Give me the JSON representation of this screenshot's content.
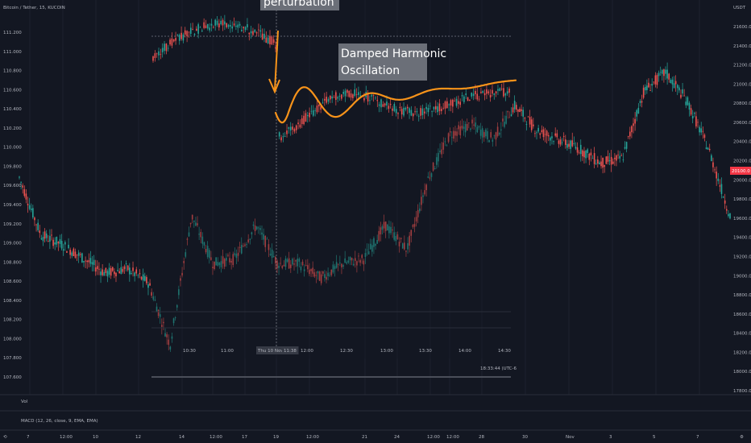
{
  "header": {
    "symbol_line": "Bitcoin / Tether, 15, KUCOIN",
    "currency": "USDT"
  },
  "indicators": {
    "volume": "Vol",
    "macd": "MACD (12, 26, close, 9, EMA, EMA)"
  },
  "colors": {
    "background": "#131722",
    "up": "#26a69a",
    "down": "#ef5350",
    "fit_curve": "#f7931a",
    "annotation_box": "#6b6f78",
    "price_tag": "#f23645"
  },
  "chart_data": [
    {
      "type": "line",
      "name": "main-price-axis",
      "x": [
        "7",
        "12:00",
        "10",
        "12",
        "14",
        "12:00",
        "17",
        "19",
        "12:00",
        "21",
        "12:00",
        "24",
        "12:00",
        "28",
        "30",
        "Nov",
        "3",
        "5",
        "7"
      ],
      "y_axis_ticks": [
        "111.200",
        "111.000",
        "110.800",
        "110.600",
        "110.400",
        "110.200",
        "110.000",
        "109.800",
        "109.600",
        "109.400",
        "109.200",
        "109.000",
        "108.800",
        "108.600",
        "108.400",
        "108.200",
        "108.000",
        "107.800",
        "107.600"
      ],
      "y_right_ticks": [
        "21600.0",
        "21400.0",
        "21200.0",
        "21000.0",
        "20800.0",
        "20600.0",
        "20400.0",
        "20200.0",
        "20000.0",
        "19800.0",
        "19600.0",
        "19400.0",
        "19200.0",
        "19000.0",
        "18800.0",
        "18600.0",
        "18400.0",
        "18200.0",
        "18000.0",
        "17800.0"
      ],
      "ylim_left": [
        107.5,
        111.3
      ],
      "ylim_right": [
        17800,
        21700
      ],
      "last_price": "20100.0",
      "ohlc_approx": [
        {
          "t": "7",
          "y": 109.7
        },
        {
          "t": "8",
          "y": 109.1
        },
        {
          "t": "9",
          "y": 109.0
        },
        {
          "t": "10",
          "y": 108.85
        },
        {
          "t": "11",
          "y": 108.7
        },
        {
          "t": "12",
          "y": 108.75
        },
        {
          "t": "13",
          "y": 108.6
        },
        {
          "t": "13.5",
          "y": 107.95
        },
        {
          "t": "14",
          "y": 109.3
        },
        {
          "t": "15",
          "y": 108.8
        },
        {
          "t": "16",
          "y": 108.85
        },
        {
          "t": "17",
          "y": 109.2
        },
        {
          "t": "18",
          "y": 108.8
        },
        {
          "t": "19",
          "y": 108.8
        },
        {
          "t": "20",
          "y": 108.65
        },
        {
          "t": "21",
          "y": 108.8
        },
        {
          "t": "22",
          "y": 108.85
        },
        {
          "t": "23",
          "y": 109.2
        },
        {
          "t": "24",
          "y": 108.95
        },
        {
          "t": "25",
          "y": 109.7
        },
        {
          "t": "26",
          "y": 110.15
        },
        {
          "t": "27",
          "y": 110.25
        },
        {
          "t": "28",
          "y": 110.1
        },
        {
          "t": "29",
          "y": 110.45
        },
        {
          "t": "30",
          "y": 110.2
        },
        {
          "t": "31",
          "y": 110.1
        },
        {
          "t": "Nov",
          "y": 110.0
        },
        {
          "t": "2",
          "y": 109.85
        },
        {
          "t": "3",
          "y": 109.9
        },
        {
          "t": "4",
          "y": 110.6
        },
        {
          "t": "5",
          "y": 110.8
        },
        {
          "t": "6",
          "y": 110.5
        },
        {
          "t": "7",
          "y": 110.0
        },
        {
          "t": "8",
          "y": 109.3
        }
      ]
    },
    {
      "type": "line",
      "name": "inset-intraday",
      "x_ticks": [
        "10:30",
        "11:00",
        "Thu 10 Nov '22",
        "11:38",
        "12:00",
        "12:30",
        "13:00",
        "13:30",
        "14:00",
        "14:30"
      ],
      "timestamp": "18:33:44 (UTC-6",
      "annotations": [
        "perturbation",
        "Damped Harmonic Oscillation"
      ],
      "fit_curve_desc": "damped sinusoid after perturbation"
    }
  ]
}
